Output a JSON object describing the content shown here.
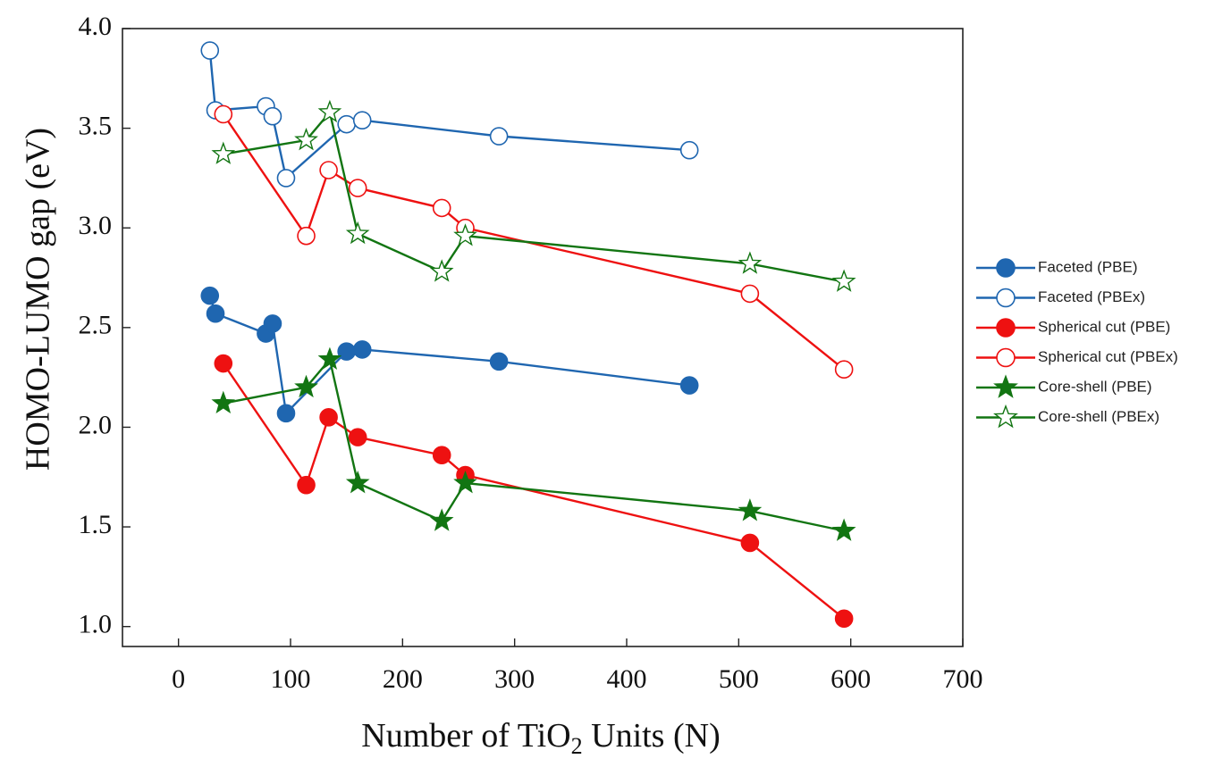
{
  "chart_data": {
    "type": "line",
    "xlabel": "Number of TiO2 Units (N)",
    "xlabel_parts": {
      "pre": "Number of TiO",
      "sub": "2",
      "post": " Units (N)"
    },
    "ylabel": "HOMO-LUMO gap (eV)",
    "xlim": [
      -50,
      700
    ],
    "ylim": [
      0.9,
      4.0
    ],
    "xticks": [
      0,
      100,
      200,
      300,
      400,
      500,
      600,
      700
    ],
    "xtick_labels": [
      "0",
      "100",
      "200",
      "300",
      "400",
      "500",
      "600",
      "700"
    ],
    "yticks": [
      1.0,
      1.5,
      2.0,
      2.5,
      3.0,
      3.5,
      4.0
    ],
    "ytick_labels": [
      "1.0",
      "1.5",
      "2.0",
      "2.5",
      "3.0",
      "3.5",
      "4.0"
    ],
    "grid": false,
    "legend_position": "right",
    "series": [
      {
        "name": "Faceted (PBE)",
        "color": "#1f66b0",
        "marker": "circle",
        "filled": true,
        "x": [
          28,
          33,
          78,
          84,
          96,
          150,
          164,
          286,
          456
        ],
        "y": [
          2.66,
          2.57,
          2.47,
          2.52,
          2.07,
          2.38,
          2.39,
          2.33,
          2.21
        ]
      },
      {
        "name": "Faceted (PBEx)",
        "color": "#1f66b0",
        "marker": "circle",
        "filled": false,
        "x": [
          28,
          33,
          78,
          84,
          96,
          150,
          164,
          286,
          456
        ],
        "y": [
          3.89,
          3.59,
          3.61,
          3.56,
          3.25,
          3.52,
          3.54,
          3.46,
          3.39
        ]
      },
      {
        "name": "Spherical cut (PBE)",
        "color": "#ee1111",
        "marker": "circle",
        "filled": true,
        "x": [
          40,
          114,
          134,
          160,
          235,
          256,
          510,
          594
        ],
        "y": [
          2.32,
          1.71,
          2.05,
          1.95,
          1.86,
          1.76,
          1.42,
          1.04
        ]
      },
      {
        "name": "Spherical cut (PBEx)",
        "color": "#ee1111",
        "marker": "circle",
        "filled": false,
        "x": [
          40,
          114,
          134,
          160,
          235,
          256,
          510,
          594
        ],
        "y": [
          3.57,
          2.96,
          3.29,
          3.2,
          3.1,
          3.0,
          2.67,
          2.29
        ]
      },
      {
        "name": "Core-shell (PBE)",
        "color": "#127512",
        "marker": "star",
        "filled": true,
        "x": [
          40,
          114,
          135,
          160,
          235,
          256,
          510,
          594
        ],
        "y": [
          2.12,
          2.2,
          2.34,
          1.72,
          1.53,
          1.72,
          1.58,
          1.48
        ]
      },
      {
        "name": "Core-shell (PBEx)",
        "color": "#127512",
        "marker": "star",
        "filled": false,
        "x": [
          40,
          114,
          135,
          160,
          235,
          256,
          510,
          594
        ],
        "y": [
          3.37,
          3.44,
          3.58,
          2.97,
          2.78,
          2.96,
          2.82,
          2.73
        ]
      }
    ]
  }
}
